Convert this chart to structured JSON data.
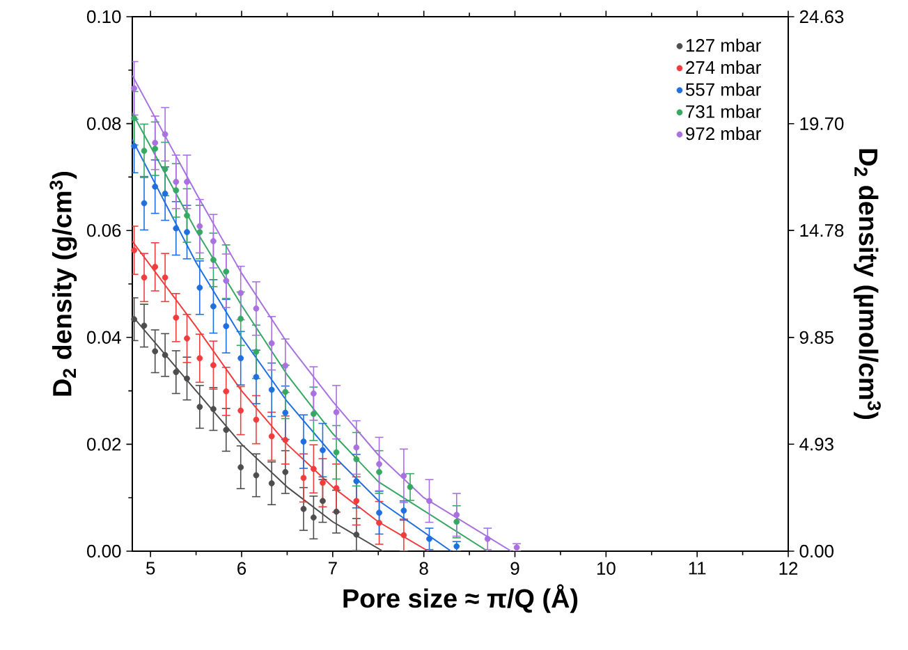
{
  "chart_data": {
    "type": "scatter",
    "xlabel": "Pore size ≈ π/Q (Å)",
    "ylabel": "D$_{2}$ density (g/cm$^{3}$)",
    "y2label": "D$_{2}$ density (µmol/cm$^{3}$)",
    "xlim": [
      4.8,
      12
    ],
    "xticks": [
      5,
      6,
      7,
      8,
      9,
      10,
      11,
      12
    ],
    "ylim": [
      0,
      0.1
    ],
    "yticks": [
      {
        "value": 0,
        "label": "0.00"
      },
      {
        "value": 0.02,
        "label": "0.02"
      },
      {
        "value": 0.04,
        "label": "0.04"
      },
      {
        "value": 0.06,
        "label": "0.06"
      },
      {
        "value": 0.08,
        "label": "0.08"
      },
      {
        "value": 0.1,
        "label": "0.10"
      }
    ],
    "y2lim": [
      0,
      24.63
    ],
    "y2ticks": [
      {
        "value": 0,
        "label": "0.00"
      },
      4.93,
      9.85,
      14.78,
      {
        "value": 19.7,
        "label": "19.70"
      },
      24.63
    ],
    "legend": "top right",
    "series": [
      {
        "name": "127 mbar",
        "marker": "circle",
        "color": "#4d4d4d",
        "x": [
          4.82,
          4.93,
          5.05,
          5.16,
          5.28,
          5.4,
          5.54,
          5.69,
          5.83,
          5.99,
          6.16,
          6.33,
          6.48,
          6.68,
          6.79,
          6.89,
          7.04,
          7.26
        ],
        "values": [
          0.0434,
          0.0422,
          0.0374,
          0.0367,
          0.0335,
          0.0323,
          0.027,
          0.0266,
          0.0227,
          0.0157,
          0.0142,
          0.0127,
          0.0148,
          0.0079,
          0.0063,
          0.0094,
          0.0074,
          0.0031
        ],
        "errors": [
          0.004,
          0.004,
          0.004,
          0.004,
          0.004,
          0.004,
          0.004,
          0.004,
          0.004,
          0.004,
          0.004,
          0.004,
          0.004,
          0.004,
          0.004,
          0.004,
          0.004,
          0.003
        ]
      },
      {
        "name": "274 mbar",
        "marker": "circle",
        "color": "#f03c3c",
        "x": [
          4.82,
          4.93,
          5.05,
          5.16,
          5.28,
          5.4,
          5.54,
          5.69,
          5.83,
          5.99,
          6.16,
          6.33,
          6.48,
          6.68,
          6.79,
          6.89,
          7.04,
          7.26,
          7.51,
          7.78
        ],
        "values": [
          0.0563,
          0.0512,
          0.0532,
          0.0512,
          0.0437,
          0.0398,
          0.0361,
          0.0348,
          0.0299,
          0.0263,
          0.0246,
          0.0215,
          0.0208,
          0.0137,
          0.0154,
          0.0128,
          0.0118,
          0.0094,
          0.0053,
          0.003
        ],
        "errors": [
          0.0045,
          0.0045,
          0.0045,
          0.0045,
          0.0045,
          0.0045,
          0.0045,
          0.0045,
          0.0045,
          0.0045,
          0.0045,
          0.0045,
          0.0045,
          0.0045,
          0.0045,
          0.0045,
          0.0045,
          0.0045,
          0.004,
          0.003
        ]
      },
      {
        "name": "557 mbar",
        "marker": "circle",
        "color": "#1f6fe0",
        "x": [
          4.82,
          4.93,
          5.05,
          5.16,
          5.28,
          5.4,
          5.54,
          5.69,
          5.83,
          5.99,
          6.16,
          6.33,
          6.48,
          6.68,
          6.89,
          7.26,
          7.51,
          7.78,
          8.06,
          8.36
        ],
        "values": [
          0.0758,
          0.0651,
          0.0682,
          0.0669,
          0.0604,
          0.0597,
          0.0493,
          0.0458,
          0.0421,
          0.0361,
          0.0326,
          0.0302,
          0.0259,
          0.0205,
          0.0189,
          0.0131,
          0.0072,
          0.0076,
          0.0023,
          0.0009
        ],
        "errors": [
          0.005,
          0.005,
          0.005,
          0.005,
          0.005,
          0.005,
          0.005,
          0.005,
          0.005,
          0.005,
          0.005,
          0.005,
          0.005,
          0.005,
          0.005,
          0.005,
          0.004,
          0.0018,
          0.002,
          0.0009
        ]
      },
      {
        "name": "731 mbar",
        "marker": "circle",
        "color": "#35a862",
        "x": [
          4.82,
          4.93,
          5.05,
          5.16,
          5.28,
          5.4,
          5.54,
          5.69,
          5.83,
          5.99,
          6.16,
          6.48,
          6.79,
          7.04,
          7.26,
          7.51,
          7.85,
          8.36
        ],
        "values": [
          0.081,
          0.0749,
          0.0753,
          0.0715,
          0.0675,
          0.0628,
          0.0597,
          0.0545,
          0.0523,
          0.0435,
          0.0373,
          0.0298,
          0.0257,
          0.0185,
          0.0172,
          0.0148,
          0.012,
          0.0055
        ],
        "errors": [
          0.005,
          0.005,
          0.005,
          0.005,
          0.005,
          0.005,
          0.005,
          0.005,
          0.005,
          0.005,
          0.005,
          0.005,
          0.005,
          0.005,
          0.005,
          0.004,
          0.0025,
          0.003
        ]
      },
      {
        "name": "972 mbar",
        "marker": "circle",
        "color": "#a970e0",
        "x": [
          4.82,
          5.05,
          5.16,
          5.28,
          5.4,
          5.54,
          5.69,
          5.83,
          5.99,
          6.16,
          6.33,
          6.48,
          6.79,
          7.04,
          7.26,
          7.51,
          7.78,
          8.06,
          8.36,
          8.7,
          9.02
        ],
        "values": [
          0.0866,
          0.0764,
          0.078,
          0.0691,
          0.0691,
          0.0608,
          0.058,
          0.0506,
          0.0483,
          0.0454,
          0.0389,
          0.0347,
          0.0295,
          0.026,
          0.0194,
          0.0163,
          0.0141,
          0.0094,
          0.0068,
          0.0023,
          0.0007
        ],
        "errors": [
          0.005,
          0.005,
          0.005,
          0.005,
          0.005,
          0.005,
          0.005,
          0.005,
          0.005,
          0.005,
          0.005,
          0.005,
          0.005,
          0.005,
          0.005,
          0.005,
          0.005,
          0.004,
          0.004,
          0.002,
          0.0007
        ]
      },
      {
        "type": "line",
        "marker": "none",
        "color": "#4d4d4d",
        "x": [
          4.8,
          5.5,
          6.0,
          6.5,
          7.0,
          7.55
        ],
        "values": [
          0.044,
          0.03,
          0.02,
          0.012,
          0.0055,
          0
        ]
      },
      {
        "type": "line",
        "marker": "none",
        "color": "#f03c3c",
        "x": [
          4.8,
          5.5,
          6.0,
          6.5,
          7.0,
          7.5,
          8.05
        ],
        "values": [
          0.058,
          0.042,
          0.03,
          0.02,
          0.012,
          0.0055,
          0
        ]
      },
      {
        "type": "line",
        "marker": "none",
        "color": "#1f6fe0",
        "x": [
          4.8,
          5.5,
          6.0,
          6.5,
          7.0,
          7.5,
          8.3
        ],
        "values": [
          0.077,
          0.054,
          0.04,
          0.028,
          0.018,
          0.0095,
          0
        ]
      },
      {
        "type": "line",
        "marker": "none",
        "color": "#35a862",
        "x": [
          4.8,
          5.5,
          6.0,
          6.5,
          7.0,
          7.5,
          8.7
        ],
        "values": [
          0.082,
          0.06,
          0.046,
          0.033,
          0.022,
          0.013,
          0
        ]
      },
      {
        "type": "line",
        "marker": "none",
        "color": "#a970e0",
        "x": [
          4.8,
          5.5,
          6.0,
          6.5,
          7.0,
          7.5,
          8.0,
          8.96
        ],
        "values": [
          0.089,
          0.067,
          0.052,
          0.039,
          0.028,
          0.018,
          0.01,
          0
        ]
      }
    ]
  }
}
